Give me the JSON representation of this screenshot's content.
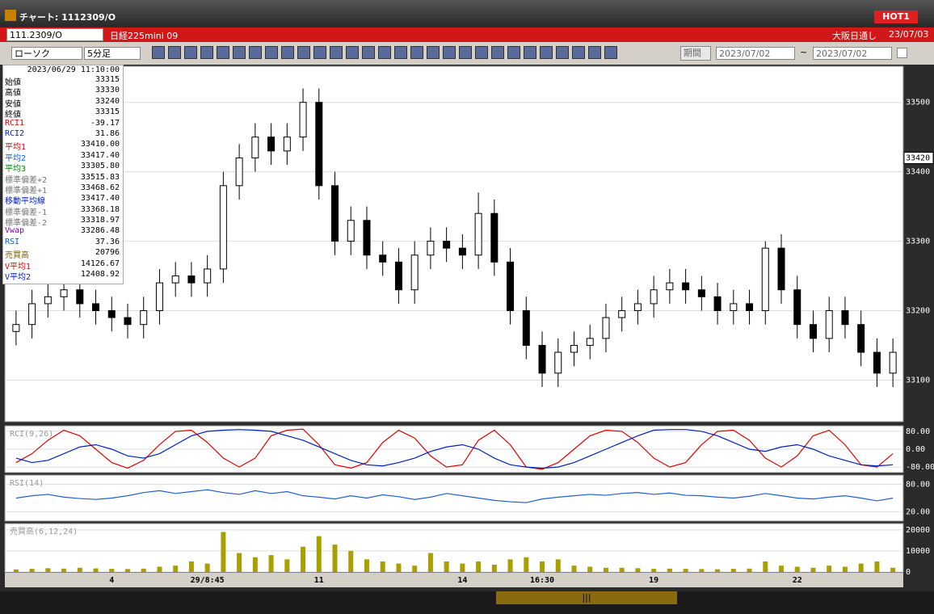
{
  "window": {
    "title": "チャート: 1112309/O",
    "badge": "HOT1"
  },
  "symbolbar": {
    "code": "111.2309/O",
    "name": "日経225mini 09",
    "session": "大阪日通し",
    "date": "23/07/03"
  },
  "toolbar": {
    "chart_kind": "ローソク",
    "interval": "5分足",
    "period_button": "期間",
    "date_from": "2023/07/02",
    "range_sep": "~",
    "date_to": "2023/07/02"
  },
  "info": {
    "datetime": "2023/06/29  11:10:00",
    "rows": [
      [
        "始値",
        "33315"
      ],
      [
        "高値",
        "33330"
      ],
      [
        "安値",
        "33240"
      ],
      [
        "終値",
        "33315"
      ],
      [
        "RCI1",
        "-39.17"
      ],
      [
        "RCI2",
        "31.86"
      ],
      [
        "平均1",
        "33410.00"
      ],
      [
        "平均2",
        "33417.40"
      ],
      [
        "平均3",
        "33305.80"
      ],
      [
        "標準偏差+2",
        "33515.83"
      ],
      [
        "標準偏差+1",
        "33468.62"
      ],
      [
        "移動平均線",
        "33417.40"
      ],
      [
        "標準偏差-1",
        "33368.18"
      ],
      [
        "標準偏差-2",
        "33318.97"
      ],
      [
        "Vwap",
        "33286.48"
      ],
      [
        "RSI",
        "37.36"
      ],
      [
        "売買高",
        "20796"
      ],
      [
        "V平均1",
        "14126.67"
      ],
      [
        "V平均2",
        "12408.92"
      ]
    ]
  },
  "chart_data": [
    {
      "type": "candlestick",
      "last_price": 33420,
      "open": [
        33170,
        33180,
        33210,
        33220,
        33230,
        33210,
        33200,
        33190,
        33180,
        33200,
        33240,
        33250,
        33240,
        33260,
        33380,
        33420,
        33450,
        33430,
        33450,
        33500,
        33380,
        33300,
        33330,
        33280,
        33270,
        33230,
        33280,
        33300,
        33290,
        33280,
        33340,
        33270,
        33200,
        33150,
        33110,
        33140,
        33150,
        33160,
        33190,
        33200,
        33210,
        33230,
        33240,
        33230,
        33220,
        33200,
        33210,
        33200,
        33290,
        33230,
        33180,
        33160,
        33200,
        33180,
        33140,
        33110
      ],
      "high": [
        33200,
        33230,
        33240,
        33250,
        33250,
        33230,
        33220,
        33210,
        33220,
        33260,
        33270,
        33270,
        33280,
        33400,
        33440,
        33470,
        33470,
        33470,
        33520,
        33520,
        33400,
        33350,
        33350,
        33300,
        33290,
        33300,
        33320,
        33320,
        33310,
        33370,
        33360,
        33290,
        33220,
        33170,
        33160,
        33170,
        33180,
        33210,
        33220,
        33230,
        33250,
        33260,
        33260,
        33250,
        33240,
        33230,
        33230,
        33300,
        33310,
        33250,
        33200,
        33220,
        33220,
        33200,
        33160,
        33160
      ],
      "low": [
        33150,
        33160,
        33190,
        33200,
        33190,
        33180,
        33170,
        33160,
        33160,
        33180,
        33220,
        33220,
        33220,
        33240,
        33360,
        33400,
        33410,
        33410,
        33430,
        33360,
        33280,
        33280,
        33260,
        33250,
        33210,
        33210,
        33260,
        33270,
        33260,
        33260,
        33250,
        33180,
        33130,
        33090,
        33090,
        33120,
        33130,
        33140,
        33170,
        33180,
        33190,
        33210,
        33210,
        33200,
        33180,
        33180,
        33180,
        33180,
        33210,
        33160,
        33140,
        33140,
        33160,
        33120,
        33090,
        33090
      ],
      "close": [
        33180,
        33210,
        33220,
        33230,
        33210,
        33200,
        33190,
        33180,
        33200,
        33240,
        33250,
        33240,
        33260,
        33380,
        33420,
        33450,
        33430,
        33450,
        33500,
        33380,
        33300,
        33330,
        33280,
        33270,
        33230,
        33280,
        33300,
        33290,
        33280,
        33340,
        33270,
        33200,
        33150,
        33110,
        33140,
        33150,
        33160,
        33190,
        33200,
        33210,
        33230,
        33240,
        33230,
        33220,
        33200,
        33210,
        33200,
        33290,
        33230,
        33180,
        33160,
        33200,
        33180,
        33140,
        33110,
        33140
      ],
      "ylim": [
        33040,
        33552
      ],
      "yticks": [
        33100,
        33200,
        33300,
        33400,
        33500
      ],
      "grid": true
    },
    {
      "type": "line",
      "title": "RCI(9,26)",
      "ylim": [
        -105,
        105
      ],
      "yticks": [
        {
          "value": 80,
          "label": "80.00"
        },
        {
          "value": 0,
          "label": "0.00"
        },
        {
          "value": -80,
          "label": "-80.00"
        }
      ],
      "series": [
        {
          "name": "RCI1",
          "color": "#e00000",
          "values": [
            -60,
            -20,
            40,
            85,
            60,
            0,
            -60,
            -85,
            -50,
            20,
            80,
            85,
            30,
            -40,
            -80,
            -40,
            60,
            85,
            90,
            20,
            -70,
            -85,
            -60,
            30,
            85,
            50,
            -30,
            -80,
            -70,
            40,
            85,
            20,
            -80,
            -90,
            -60,
            0,
            60,
            85,
            80,
            30,
            -40,
            -80,
            -60,
            20,
            80,
            85,
            40,
            -40,
            -80,
            -30,
            60,
            85,
            20,
            -70,
            -80,
            -20
          ]
        },
        {
          "name": "RCI2",
          "color": "#0020c0",
          "values": [
            -40,
            -60,
            -50,
            -20,
            10,
            20,
            0,
            -30,
            -40,
            -20,
            20,
            60,
            80,
            85,
            88,
            85,
            80,
            60,
            40,
            10,
            -20,
            -50,
            -70,
            -75,
            -60,
            -40,
            -10,
            10,
            20,
            0,
            -40,
            -70,
            -80,
            -85,
            -80,
            -60,
            -30,
            0,
            30,
            60,
            85,
            88,
            88,
            80,
            60,
            30,
            0,
            -10,
            10,
            20,
            0,
            -30,
            -50,
            -70,
            -75,
            -70
          ]
        }
      ]
    },
    {
      "type": "line",
      "title": "RSI(14)",
      "ylim": [
        0,
        100
      ],
      "yticks": [
        {
          "value": 80,
          "label": "80.00"
        },
        {
          "value": 20,
          "label": "20.00"
        }
      ],
      "series": [
        {
          "name": "RSI",
          "color": "#2060d0",
          "values": [
            50,
            55,
            58,
            52,
            49,
            47,
            50,
            55,
            62,
            66,
            60,
            64,
            68,
            62,
            58,
            66,
            60,
            64,
            55,
            52,
            48,
            55,
            50,
            57,
            53,
            47,
            52,
            60,
            55,
            50,
            45,
            42,
            40,
            48,
            52,
            55,
            58,
            56,
            60,
            62,
            58,
            61,
            56,
            55,
            52,
            50,
            54,
            60,
            55,
            50,
            48,
            52,
            55,
            50,
            44,
            50
          ]
        }
      ]
    },
    {
      "type": "bar",
      "title": "売買高(6,12,24)",
      "color": "#a8a000",
      "ylim": [
        0,
        23000
      ],
      "yticks": [
        20000,
        10000,
        0
      ],
      "categories": [
        null,
        null,
        null,
        null,
        null,
        null,
        "4",
        null,
        null,
        null,
        null,
        null,
        "29/8:45",
        null,
        null,
        null,
        null,
        null,
        null,
        "11",
        null,
        null,
        null,
        null,
        null,
        null,
        null,
        null,
        "14",
        null,
        null,
        null,
        null,
        "16:30",
        null,
        null,
        null,
        null,
        null,
        null,
        "19",
        null,
        null,
        null,
        null,
        null,
        null,
        null,
        null,
        "22",
        null,
        null,
        null,
        null,
        null,
        null
      ],
      "values": [
        1200,
        1500,
        1800,
        1600,
        2000,
        1700,
        1500,
        1400,
        1600,
        2500,
        3000,
        5000,
        4000,
        19000,
        9000,
        7000,
        8000,
        6000,
        12000,
        17000,
        13000,
        10000,
        6000,
        5000,
        4000,
        3000,
        9000,
        5000,
        4000,
        5000,
        3500,
        6000,
        7000,
        5000,
        6000,
        3000,
        2500,
        2000,
        2000,
        1800,
        1500,
        1600,
        1500,
        1400,
        1300,
        1500,
        1600,
        5000,
        3000,
        2500,
        2000,
        3000,
        2500,
        4000,
        5000,
        2000
      ]
    }
  ]
}
